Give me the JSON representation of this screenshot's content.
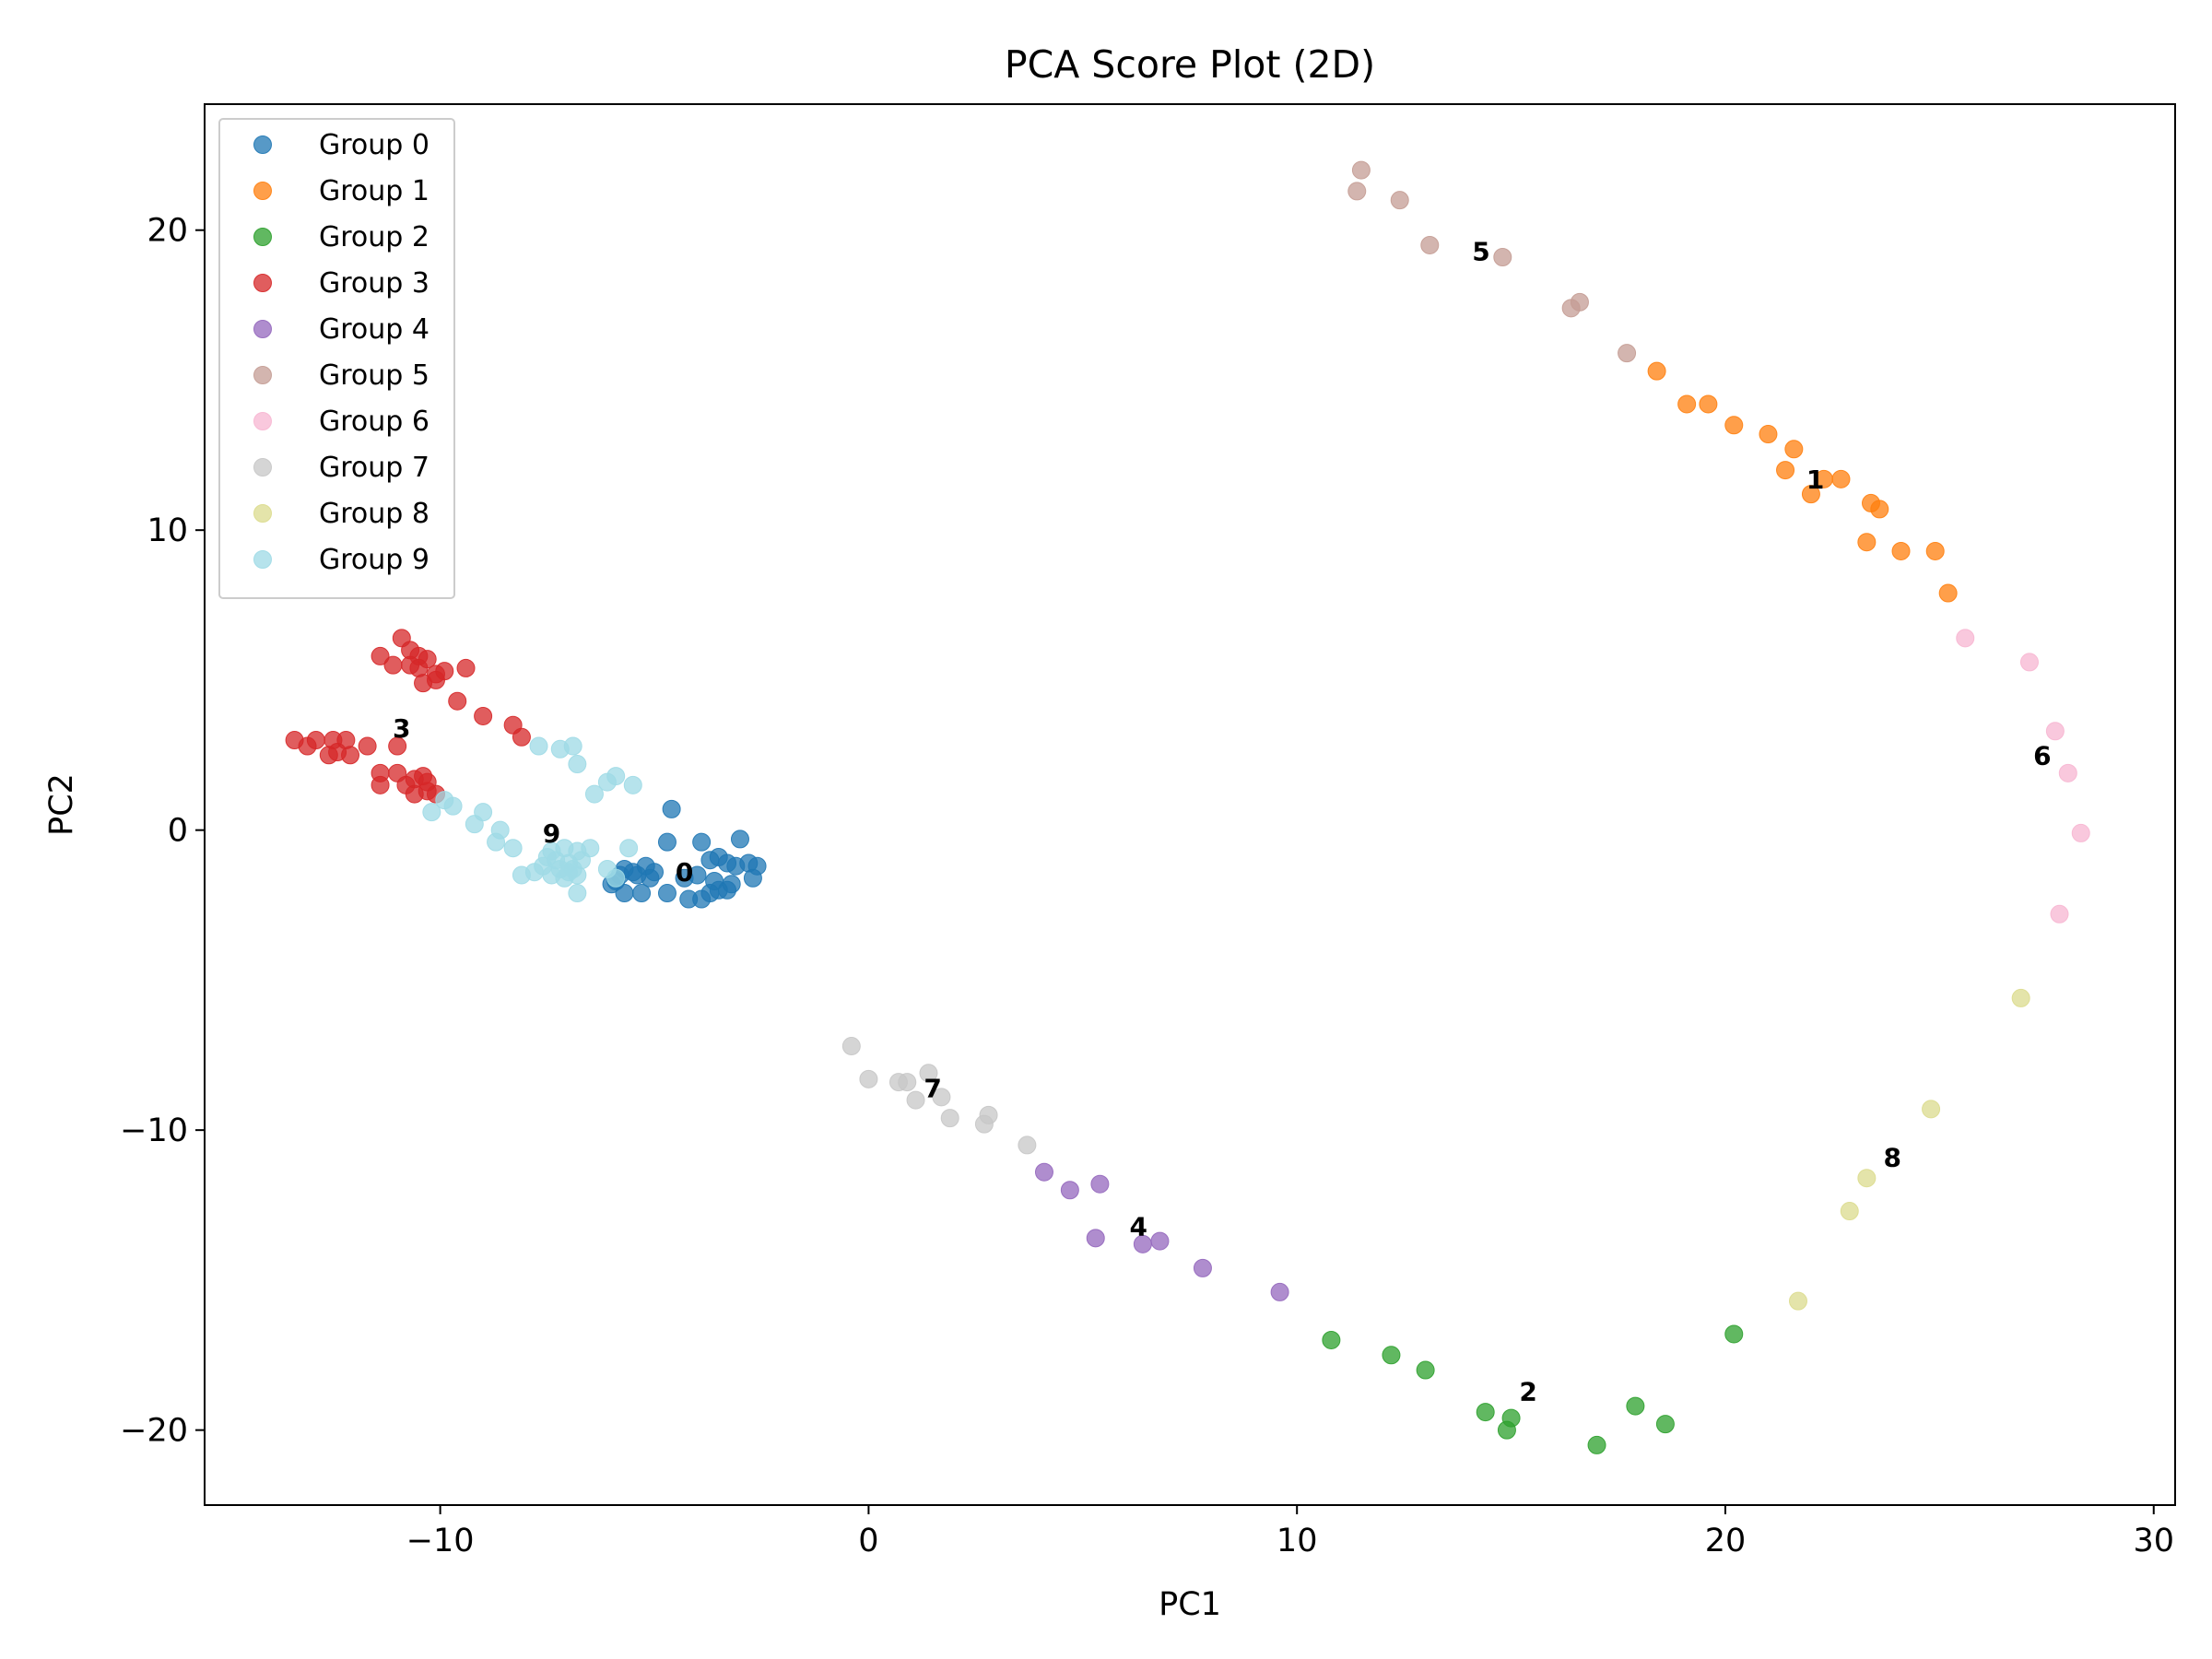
{
  "chart_data": {
    "type": "scatter",
    "title": "PCA Score Plot (2D)",
    "xlabel": "PC1",
    "ylabel": "PC2",
    "xlim": [
      -15.5,
      30.5
    ],
    "ylim": [
      -22.5,
      24.2
    ],
    "xticks": [
      -10,
      0,
      10,
      20,
      30
    ],
    "xtick_labels": [
      "−10",
      "0",
      "10",
      "20",
      "30"
    ],
    "yticks": [
      -20,
      -10,
      0,
      10,
      20
    ],
    "ytick_labels": [
      "−20",
      "−10",
      "0",
      "10",
      "20"
    ],
    "grid": false,
    "legend_position": "upper-left",
    "series": [
      {
        "name": "Group 0",
        "color": "#1f77b4",
        "points": [
          [
            -4.6,
            0.7
          ],
          [
            -4.7,
            -0.4
          ],
          [
            -3.9,
            -0.4
          ],
          [
            -3.0,
            -0.3
          ],
          [
            -3.5,
            -0.9
          ],
          [
            -3.7,
            -1.0
          ],
          [
            -2.8,
            -1.1
          ],
          [
            -2.6,
            -1.2
          ],
          [
            -3.1,
            -1.2
          ],
          [
            -3.3,
            -1.1
          ],
          [
            -5.2,
            -1.2
          ],
          [
            -5.7,
            -1.3
          ],
          [
            -5.5,
            -1.4
          ],
          [
            -5.8,
            -1.5
          ],
          [
            -5.4,
            -1.5
          ],
          [
            -5.0,
            -1.4
          ],
          [
            -5.1,
            -1.6
          ],
          [
            -4.3,
            -1.6
          ],
          [
            -4.0,
            -1.5
          ],
          [
            -3.6,
            -1.7
          ],
          [
            -3.2,
            -1.8
          ],
          [
            -2.7,
            -1.6
          ],
          [
            -3.5,
            -2.0
          ],
          [
            -3.3,
            -2.0
          ],
          [
            -3.7,
            -2.1
          ],
          [
            -4.7,
            -2.1
          ],
          [
            -5.3,
            -2.1
          ],
          [
            -5.7,
            -2.1
          ],
          [
            -5.9,
            -1.7
          ],
          [
            -6.0,
            -1.8
          ],
          [
            -3.9,
            -2.3
          ],
          [
            -4.2,
            -2.3
          ]
        ]
      },
      {
        "name": "Group 1",
        "color": "#ff7f0e",
        "points": [
          [
            18.4,
            15.3
          ],
          [
            19.1,
            14.2
          ],
          [
            19.6,
            14.2
          ],
          [
            20.2,
            13.5
          ],
          [
            21.0,
            13.2
          ],
          [
            21.6,
            12.7
          ],
          [
            21.4,
            12.0
          ],
          [
            22.0,
            11.2
          ],
          [
            22.3,
            11.7
          ],
          [
            22.7,
            11.7
          ],
          [
            23.4,
            10.9
          ],
          [
            23.6,
            10.7
          ],
          [
            23.3,
            9.6
          ],
          [
            24.1,
            9.3
          ],
          [
            24.9,
            9.3
          ],
          [
            25.2,
            7.9
          ]
        ]
      },
      {
        "name": "Group 2",
        "color": "#2ca02c",
        "points": [
          [
            10.8,
            -17.0
          ],
          [
            12.2,
            -17.5
          ],
          [
            13.0,
            -18.0
          ],
          [
            14.4,
            -19.4
          ],
          [
            15.0,
            -19.6
          ],
          [
            14.9,
            -20.0
          ],
          [
            17.0,
            -20.5
          ],
          [
            17.9,
            -19.2
          ],
          [
            18.6,
            -19.8
          ],
          [
            20.2,
            -16.8
          ]
        ]
      },
      {
        "name": "Group 3",
        "color": "#d62728",
        "points": [
          [
            -10.9,
            6.4
          ],
          [
            -11.4,
            5.8
          ],
          [
            -10.7,
            6.0
          ],
          [
            -10.5,
            5.8
          ],
          [
            -10.3,
            5.7
          ],
          [
            -11.1,
            5.5
          ],
          [
            -10.7,
            5.5
          ],
          [
            -10.5,
            5.4
          ],
          [
            -10.1,
            5.2
          ],
          [
            -9.9,
            5.3
          ],
          [
            -10.1,
            5.0
          ],
          [
            -10.4,
            4.9
          ],
          [
            -9.4,
            5.4
          ],
          [
            -9.6,
            4.3
          ],
          [
            -9.0,
            3.8
          ],
          [
            -8.3,
            3.5
          ],
          [
            -8.1,
            3.1
          ],
          [
            -11.0,
            2.8
          ],
          [
            -13.4,
            3.0
          ],
          [
            -13.1,
            2.8
          ],
          [
            -12.9,
            3.0
          ],
          [
            -12.5,
            3.0
          ],
          [
            -12.2,
            3.0
          ],
          [
            -12.4,
            2.6
          ],
          [
            -12.1,
            2.5
          ],
          [
            -11.7,
            2.8
          ],
          [
            -12.6,
            2.5
          ],
          [
            -11.4,
            1.9
          ],
          [
            -11.0,
            1.9
          ],
          [
            -10.6,
            1.7
          ],
          [
            -10.4,
            1.8
          ],
          [
            -10.3,
            1.6
          ],
          [
            -10.8,
            1.5
          ],
          [
            -11.4,
            1.5
          ],
          [
            -10.3,
            1.3
          ],
          [
            -10.1,
            1.2
          ],
          [
            -10.6,
            1.2
          ]
        ]
      },
      {
        "name": "Group 4",
        "color": "#9467bd",
        "points": [
          [
            4.1,
            -11.4
          ],
          [
            4.7,
            -12.0
          ],
          [
            5.4,
            -11.8
          ],
          [
            5.3,
            -13.6
          ],
          [
            6.4,
            -13.8
          ],
          [
            6.8,
            -13.7
          ],
          [
            7.8,
            -14.6
          ],
          [
            9.6,
            -15.4
          ]
        ]
      },
      {
        "name": "Group 5",
        "color": "#c49c94",
        "points": [
          [
            11.5,
            22.0
          ],
          [
            11.4,
            21.3
          ],
          [
            12.4,
            21.0
          ],
          [
            13.1,
            19.5
          ],
          [
            14.8,
            19.1
          ],
          [
            16.4,
            17.4
          ],
          [
            16.6,
            17.6
          ],
          [
            17.7,
            15.9
          ]
        ]
      },
      {
        "name": "Group 6",
        "color": "#f7b6d2",
        "points": [
          [
            25.6,
            6.4
          ],
          [
            27.1,
            5.6
          ],
          [
            27.7,
            3.3
          ],
          [
            28.0,
            1.9
          ],
          [
            28.3,
            -0.1
          ],
          [
            27.8,
            -2.8
          ]
        ]
      },
      {
        "name": "Group 7",
        "color": "#c7c7c7",
        "points": [
          [
            -0.4,
            -7.2
          ],
          [
            0.0,
            -8.3
          ],
          [
            0.7,
            -8.4
          ],
          [
            0.9,
            -8.4
          ],
          [
            1.4,
            -8.1
          ],
          [
            1.7,
            -8.9
          ],
          [
            1.1,
            -9.0
          ],
          [
            1.9,
            -9.6
          ],
          [
            2.8,
            -9.5
          ],
          [
            2.7,
            -9.8
          ],
          [
            3.7,
            -10.5
          ]
        ]
      },
      {
        "name": "Group 8",
        "color": "#dbdb8d",
        "points": [
          [
            26.9,
            -5.6
          ],
          [
            24.8,
            -9.3
          ],
          [
            23.3,
            -11.6
          ],
          [
            22.9,
            -12.7
          ],
          [
            21.7,
            -15.7
          ]
        ]
      },
      {
        "name": "Group 9",
        "color": "#9edae5",
        "points": [
          [
            -7.7,
            2.8
          ],
          [
            -7.2,
            2.7
          ],
          [
            -6.9,
            2.8
          ],
          [
            -6.8,
            2.2
          ],
          [
            -6.4,
            1.2
          ],
          [
            -6.1,
            1.6
          ],
          [
            -5.9,
            1.8
          ],
          [
            -5.5,
            1.5
          ],
          [
            -9.9,
            1.0
          ],
          [
            -9.7,
            0.8
          ],
          [
            -10.2,
            0.6
          ],
          [
            -9.0,
            0.6
          ],
          [
            -9.2,
            0.2
          ],
          [
            -8.6,
            0.0
          ],
          [
            -8.7,
            -0.4
          ],
          [
            -8.3,
            -0.6
          ],
          [
            -7.4,
            -0.7
          ],
          [
            -7.1,
            -0.6
          ],
          [
            -6.8,
            -0.7
          ],
          [
            -6.5,
            -0.6
          ],
          [
            -5.6,
            -0.6
          ],
          [
            -7.5,
            -0.9
          ],
          [
            -7.3,
            -1.0
          ],
          [
            -7.0,
            -1.1
          ],
          [
            -6.7,
            -1.0
          ],
          [
            -7.6,
            -1.2
          ],
          [
            -7.2,
            -1.3
          ],
          [
            -6.9,
            -1.3
          ],
          [
            -6.8,
            -1.5
          ],
          [
            -7.0,
            -1.4
          ],
          [
            -7.4,
            -1.5
          ],
          [
            -7.8,
            -1.4
          ],
          [
            -8.1,
            -1.5
          ],
          [
            -7.1,
            -1.6
          ],
          [
            -6.1,
            -1.3
          ],
          [
            -6.8,
            -2.1
          ],
          [
            -5.9,
            -1.6
          ]
        ]
      }
    ],
    "annotations": [
      {
        "text": "0",
        "x": -4.3,
        "y": -1.4
      },
      {
        "text": "1",
        "x": 22.1,
        "y": 11.7
      },
      {
        "text": "2",
        "x": 15.4,
        "y": -18.7
      },
      {
        "text": "3",
        "x": -10.9,
        "y": 3.4
      },
      {
        "text": "4",
        "x": 6.3,
        "y": -13.2
      },
      {
        "text": "5",
        "x": 14.3,
        "y": 19.3
      },
      {
        "text": "6",
        "x": 27.4,
        "y": 2.5
      },
      {
        "text": "7",
        "x": 1.5,
        "y": -8.6
      },
      {
        "text": "8",
        "x": 23.9,
        "y": -10.9
      },
      {
        "text": "9",
        "x": -7.4,
        "y": -0.1
      }
    ]
  }
}
